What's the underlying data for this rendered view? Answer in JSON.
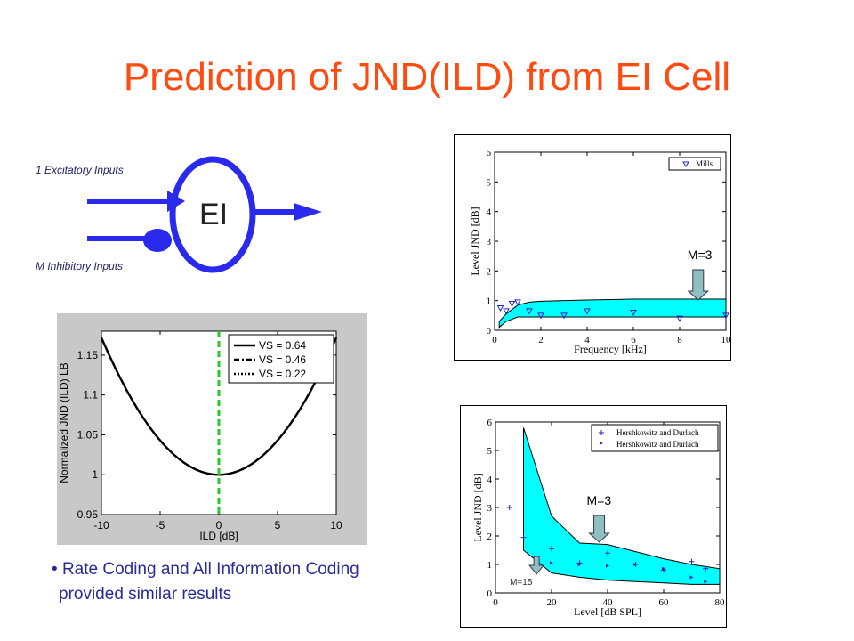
{
  "slide": {
    "title": "Prediction of JND(ILD) from EI Cell",
    "bullet_text_line1": "Rate Coding and All Information Coding",
    "bullet_text_line2": "provided similar results"
  },
  "diagram": {
    "excitatory_label": "1 Excitatory Inputs",
    "inhibitory_label": "M Inhibitory Inputs",
    "cell_label": "EI",
    "color": "#2a2aee"
  },
  "chart_data": [
    {
      "type": "line",
      "xlabel": "ILD [dB]",
      "ylabel": "Normalized JND (ILD) LB",
      "xlim": [
        -10,
        10
      ],
      "ylim": [
        0.95,
        1.18
      ],
      "xticks": [
        "-10",
        "-5",
        "0",
        "5",
        "10"
      ],
      "yticks": [
        "0.95",
        "1",
        "1.05",
        "1.1",
        "1.15"
      ],
      "legend": [
        "VS = 0.64",
        "VS = 0.46",
        "VS = 0.22"
      ],
      "legend_position": "top-right",
      "series": [
        {
          "name": "VS = 0.64",
          "style": "solid",
          "x": [
            -10,
            -8,
            -6,
            -4,
            -2,
            0,
            2,
            4,
            6,
            8,
            10
          ],
          "values": [
            1.172,
            1.107,
            1.06,
            1.026,
            1.007,
            1.0,
            1.007,
            1.026,
            1.06,
            1.107,
            1.172
          ]
        },
        {
          "name": "VS = 0.46",
          "style": "dash-dot",
          "x": [
            -10,
            -8,
            -6,
            -4,
            -2,
            0,
            2,
            4,
            6,
            8,
            10
          ],
          "values": [
            1.172,
            1.107,
            1.06,
            1.026,
            1.007,
            1.0,
            1.007,
            1.026,
            1.06,
            1.107,
            1.172
          ]
        },
        {
          "name": "VS = 0.22",
          "style": "dotted",
          "x": [
            -10,
            -8,
            -6,
            -4,
            -2,
            0,
            2,
            4,
            6,
            8,
            10
          ],
          "values": [
            1.172,
            1.107,
            1.06,
            1.026,
            1.007,
            1.0,
            1.007,
            1.026,
            1.06,
            1.107,
            1.172
          ]
        }
      ],
      "vertical_marker": {
        "x": 0,
        "color": "#22cc22"
      }
    },
    {
      "type": "area",
      "xlabel": "Frequency [kHz]",
      "ylabel": "Level JND [dB]",
      "xlim": [
        0,
        10
      ],
      "ylim": [
        0,
        6
      ],
      "xticks": [
        "0",
        "2",
        "4",
        "6",
        "8",
        "10"
      ],
      "yticks": [
        "0",
        "1",
        "2",
        "3",
        "4",
        "5",
        "6"
      ],
      "legend": [
        "Mills"
      ],
      "legend_position": "top-right",
      "band": {
        "x": [
          0.2,
          0.5,
          1.0,
          1.5,
          2.0,
          3.0,
          4.0,
          6.0,
          8.0,
          10.0
        ],
        "upper": [
          0.3,
          0.55,
          0.85,
          0.95,
          0.98,
          1.0,
          1.02,
          1.05,
          1.05,
          1.05
        ],
        "lower": [
          0.1,
          0.3,
          0.45,
          0.45,
          0.45,
          0.45,
          0.45,
          0.45,
          0.45,
          0.45
        ]
      },
      "points": {
        "name": "Mills",
        "x": [
          0.25,
          0.5,
          0.75,
          1.0,
          1.5,
          2.0,
          3.0,
          4.0,
          6.0,
          8.0,
          10.0
        ],
        "values": [
          0.75,
          0.65,
          0.9,
          0.95,
          0.65,
          0.5,
          0.5,
          0.65,
          0.6,
          0.4,
          0.5
        ]
      },
      "annotation": {
        "text": "M=3",
        "x": 8.8
      },
      "band_color": "#00ffff"
    },
    {
      "type": "area",
      "xlabel": "Level [dB SPL]",
      "ylabel": "Level JND [dB]",
      "xlim": [
        0,
        80
      ],
      "ylim": [
        0,
        6
      ],
      "xticks": [
        "0",
        "20",
        "40",
        "60",
        "80"
      ],
      "yticks": [
        "0",
        "1",
        "2",
        "3",
        "4",
        "5",
        "6"
      ],
      "legend": [
        "Hershkowitz and Durlach",
        "Hershkowitz and Durlach"
      ],
      "legend_position": "top-right",
      "band": {
        "x": [
          10,
          20,
          30,
          40,
          50,
          60,
          70,
          80
        ],
        "upper": [
          5.8,
          2.7,
          1.75,
          1.7,
          1.45,
          1.2,
          1.0,
          0.85
        ],
        "lower": [
          1.5,
          0.7,
          0.55,
          0.45,
          0.4,
          0.35,
          0.3,
          0.3
        ]
      },
      "points_plus": {
        "name": "Hershkowitz and Durlach",
        "x": [
          5,
          10,
          20,
          30,
          40,
          50,
          60,
          70,
          75
        ],
        "values": [
          3.0,
          1.95,
          1.55,
          1.05,
          1.4,
          1.0,
          0.8,
          1.1,
          0.85
        ]
      },
      "points_tri": {
        "name": "Hershkowitz and Durlach",
        "x": [
          20,
          30,
          40,
          50,
          60,
          70,
          75
        ],
        "values": [
          1.05,
          1.0,
          0.95,
          1.0,
          0.85,
          0.55,
          0.4
        ]
      },
      "annotations": [
        {
          "text": "M=3",
          "x": 37
        },
        {
          "text": "M=15",
          "x": 14
        }
      ],
      "band_color": "#00ffff"
    }
  ]
}
